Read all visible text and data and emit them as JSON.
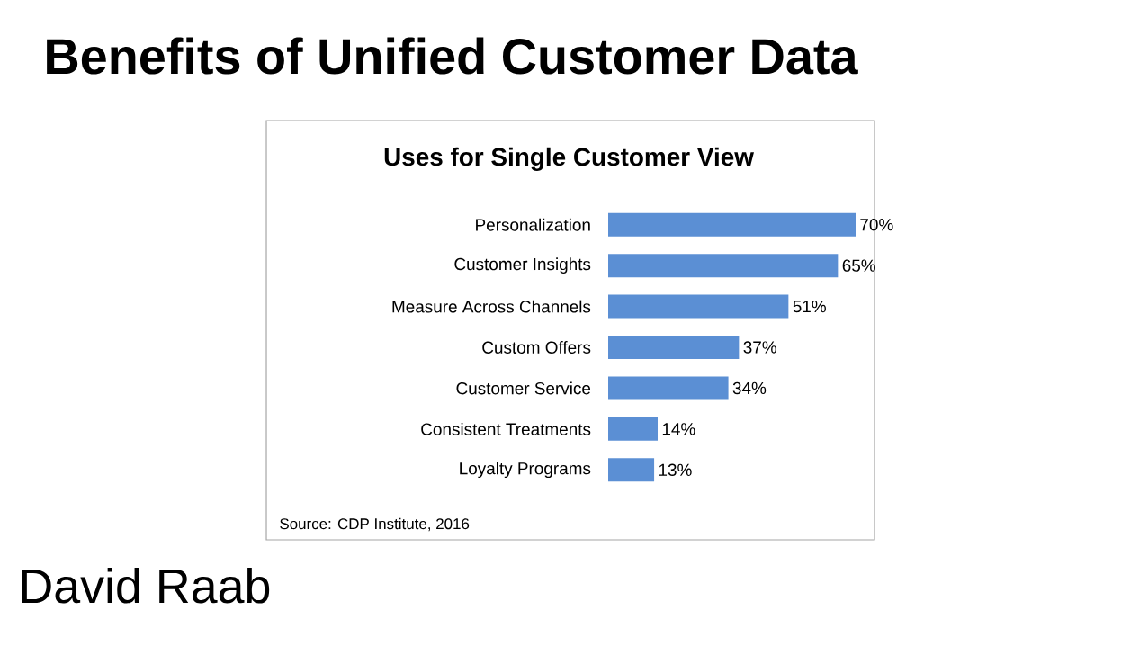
{
  "chart_data": {
    "type": "bar",
    "orientation": "horizontal",
    "title": "Benefits of Unified Customer Data",
    "subtitle": "Uses for Single Customer View",
    "categories": [
      "Personalization",
      "Customer Insights",
      "Measure Across Channels",
      "Custom Offers",
      "Customer Service",
      "Consistent Treatments",
      "Loyalty Programs"
    ],
    "values": [
      70,
      65,
      51,
      37,
      34,
      14,
      13
    ],
    "value_labels": [
      "70%",
      "65%",
      "51%",
      "37%",
      "34%",
      "14%",
      "13%"
    ],
    "color": "#5b8fd4",
    "annotations": [
      "Source: CDP Institute, 2016",
      "David Raab"
    ]
  }
}
